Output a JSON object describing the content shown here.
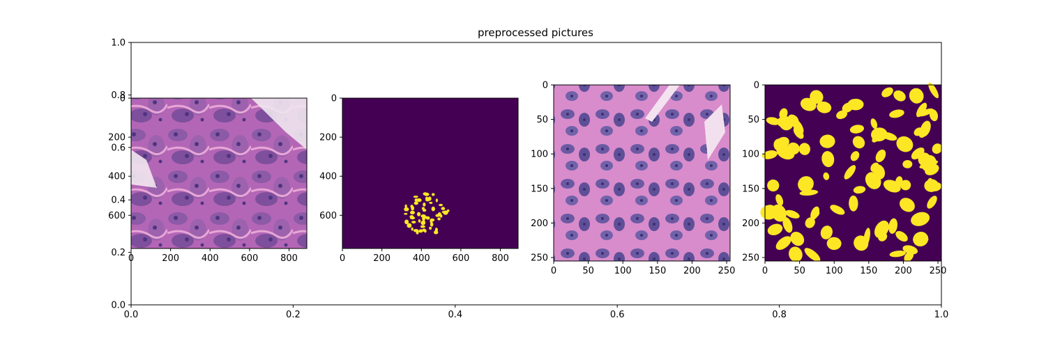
{
  "chart_data": [
    {
      "type": "blank",
      "title": "preprocessed pictures",
      "xlim": [
        0,
        1
      ],
      "ylim": [
        0,
        1
      ],
      "xticks": [
        0.0,
        0.2,
        0.4,
        0.6,
        0.8,
        1.0
      ],
      "xtick_labels": [
        "0.0",
        "0.2",
        "0.4",
        "0.6",
        "0.8",
        "1.0"
      ],
      "yticks": [
        0.0,
        0.2,
        0.4,
        0.6,
        0.8,
        1.0
      ],
      "ytick_labels": [
        "0.0",
        "0.2",
        "0.4",
        "0.6",
        "0.8",
        "1.0"
      ]
    },
    {
      "type": "image",
      "content": "H&E histology tissue (low magnification)",
      "xlim": [
        0,
        890
      ],
      "ylim": [
        0,
        770
      ],
      "xticks": [
        0,
        200,
        400,
        600,
        800
      ],
      "yticks": [
        0,
        200,
        400,
        600
      ],
      "colors": [
        "#f0e6ee",
        "#b05cb1",
        "#6a3f94",
        "#d070b6"
      ]
    },
    {
      "type": "image",
      "content": "binary mask (viridis colormap)",
      "xlim": [
        0,
        890
      ],
      "ylim": [
        0,
        770
      ],
      "xticks": [
        0,
        200,
        400,
        600,
        800
      ],
      "yticks": [
        0,
        200,
        400,
        600
      ],
      "colors": [
        "#440154",
        "#fde725"
      ]
    },
    {
      "type": "image",
      "content": "H&E histology tissue crop (high magnification)",
      "xlim": [
        0,
        255
      ],
      "ylim": [
        0,
        255
      ],
      "xticks": [
        0,
        50,
        100,
        150,
        200,
        250
      ],
      "yticks": [
        0,
        50,
        100,
        150,
        200,
        250
      ],
      "colors": [
        "#e8a6d8",
        "#c978c3",
        "#6a56a0",
        "#3e3d82"
      ]
    },
    {
      "type": "image",
      "content": "nuclei segmentation mask (viridis colormap)",
      "xlim": [
        0,
        255
      ],
      "ylim": [
        0,
        255
      ],
      "xticks": [
        0,
        50,
        100,
        150,
        200,
        250
      ],
      "yticks": [
        0,
        50,
        100,
        150,
        200,
        250
      ],
      "colors": [
        "#440154",
        "#fde725"
      ]
    }
  ]
}
